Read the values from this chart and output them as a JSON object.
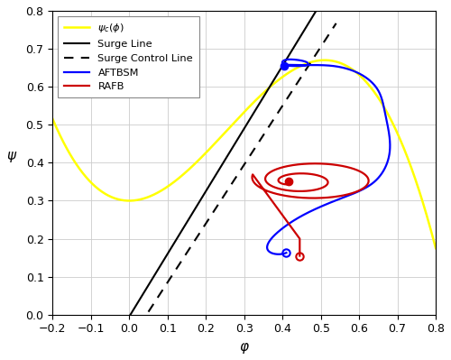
{
  "xlim": [
    -0.2,
    0.8
  ],
  "ylim": [
    0.0,
    0.8
  ],
  "xlabel": "φ",
  "ylabel": "ψ",
  "grid": true,
  "surge_slope": 1.65,
  "surge_intercept": -0.005,
  "surge_control_slope": 1.55,
  "surge_control_intercept": -0.07,
  "psi_c_color": "#ffff00",
  "surge_line_color": "#000000",
  "aftbsm_color": "#0000ff",
  "rafb_color": "#cc0000",
  "blue_dot": [
    0.405,
    0.655
  ],
  "red_dot": [
    0.415,
    0.35
  ],
  "blue_circle": [
    0.41,
    0.163
  ],
  "red_circle": [
    0.445,
    0.155
  ]
}
